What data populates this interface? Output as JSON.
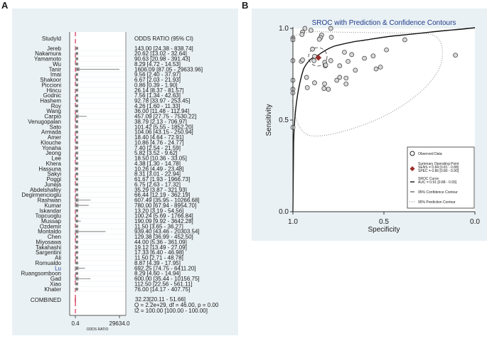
{
  "panel_labels": {
    "a": "A",
    "b": "B"
  },
  "chart_data": [
    {
      "type": "forest",
      "header_study": "StudyId",
      "header_effect": "ODDS RATIO (95% CI)",
      "xlabel": "ODDS RATIO",
      "xticks": [
        "0.4",
        "29634.0"
      ],
      "xlim": [
        0.4,
        29634.0
      ],
      "reference_line": 32.23,
      "studies": [
        [
          "Jereb",
          143.0,
          24.38,
          838.74
        ],
        [
          "Nakamura",
          20.62,
          13.02,
          32.64
        ],
        [
          "Yamamoto",
          90.63,
          20.98,
          391.43
        ],
        [
          "Wu",
          8.29,
          4.72,
          14.53
        ],
        [
          "Tanir",
          1606.09,
          87.05,
          29633.96
        ],
        [
          "Imai",
          9.56,
          2.4,
          37.97
        ],
        [
          "Shakoor",
          6.67,
          2.03,
          21.93
        ],
        [
          "Piccioni",
          0.86,
          0.39,
          1.9
        ],
        [
          "Hincu",
          26.14,
          8.37,
          81.57
        ],
        [
          "Godnic",
          7.56,
          1.34,
          42.63
        ],
        [
          "Hashem",
          92.78,
          33.97,
          253.45
        ],
        [
          "Roy",
          4.26,
          1.6,
          11.33
        ],
        [
          "Wang",
          36.0,
          11.48,
          112.94
        ],
        [
          "Carpio",
          457.09,
          27.75,
          7530.22
        ],
        [
          "Venugopalan",
          38.79,
          2.13,
          706.97
        ],
        [
          "Sato",
          101.42,
          5.55,
          1852.2
        ],
        [
          "Armada",
          104.06,
          43.15,
          250.94
        ],
        [
          "Amer",
          18.4,
          4.64,
          72.91
        ],
        [
          "Klouche",
          10.86,
          4.76,
          24.77
        ],
        [
          "Yonaha",
          7.4,
          2.54,
          21.59
        ],
        [
          "Jeong",
          5.82,
          3.52,
          9.62
        ],
        [
          "Lee",
          18.5,
          10.36,
          33.05
        ],
        [
          "Khera",
          4.38,
          1.3,
          14.78
        ],
        [
          "Hassuna",
          10.26,
          4.49,
          23.48
        ],
        [
          "Sakyi",
          8.31,
          3.01,
          22.94
        ],
        [
          "Poggi",
          61.67,
          1.93,
          1966.73
        ],
        [
          "Juneja",
          6.75,
          2.63,
          17.32
        ],
        [
          "Abdelshafey",
          35.29,
          3.87,
          321.93
        ],
        [
          "Degirmencioglu",
          66.44,
          12.19,
          362.19
        ],
        [
          "Rashwan",
          607.49,
          35.95,
          10266.68
        ],
        [
          "Kumar",
          780.0,
          67.94,
          8954.7
        ],
        [
          "Iskandar",
          13.2,
          3.19,
          54.56
        ],
        [
          "Topcuoglu",
          100.24,
          5.69,
          1766.84
        ],
        [
          "Mussap",
          190.09,
          9.92,
          3642.28
        ],
        [
          "Ozdemir",
          11.5,
          3.65,
          36.27
        ],
        [
          "Montaldo",
          939.4,
          43.46,
          20303.54
        ],
        [
          "Chen",
          129.38,
          36.99,
          452.5
        ],
        [
          "Miyosawa",
          44.0,
          5.36,
          361.09
        ],
        [
          "Takahashi",
          19.12,
          13.49,
          27.09
        ],
        [
          "Sargentini",
          17.33,
          6.4,
          46.98
        ],
        [
          "Ali",
          11.5,
          2.71,
          48.78
        ],
        [
          "Romualdo",
          8.87,
          4.39,
          17.95
        ],
        [
          "Lu",
          692.25,
          74.75,
          6411.2
        ],
        [
          "Ruangsomboon",
          8.29,
          4.6,
          14.94
        ],
        [
          "Gad",
          600.0,
          35.44,
          10156.75
        ],
        [
          "Xiao",
          112.5,
          22.56,
          561.11
        ],
        [
          "Khater",
          76.0,
          14.17,
          407.75
        ]
      ],
      "combined": {
        "label": "COMBINED",
        "estimate_text": "32.23[20.11 - 51.66]",
        "q_text": "Q = 2.2e+29, df = 46.00, p = 0.00",
        "i2_text": "I2 = 100.00 [100.00 - 100.00]"
      },
      "colors": {
        "reference": "#e0637f",
        "box": "#9a9a9a"
      }
    },
    {
      "type": "scatter",
      "title": "SROC with Prediction & Confidence Contours",
      "xlabel": "Specificity",
      "ylabel": "Sensitivity",
      "xlim": [
        1.0,
        0.0
      ],
      "ylim": [
        0.0,
        1.0
      ],
      "xticks": [
        "1.0",
        "0.5",
        "0.0"
      ],
      "yticks": [
        "0.0",
        "0.5",
        "1.0"
      ],
      "points": [
        [
          0.934,
          1.0
        ],
        [
          0.901,
          0.99
        ],
        [
          0.947,
          0.98
        ],
        [
          0.95,
          0.967
        ],
        [
          1.0,
          0.948
        ],
        [
          1.0,
          0.938
        ],
        [
          0.842,
          0.964
        ],
        [
          0.848,
          0.95
        ],
        [
          0.855,
          0.941
        ],
        [
          0.792,
          1.0
        ],
        [
          0.789,
          0.952
        ],
        [
          0.892,
          0.887
        ],
        [
          0.881,
          0.848
        ],
        [
          0.884,
          0.824
        ],
        [
          1.0,
          0.824
        ],
        [
          0.954,
          0.82
        ],
        [
          0.947,
          0.828
        ],
        [
          0.825,
          0.815
        ],
        [
          0.822,
          0.796
        ],
        [
          0.792,
          0.824
        ],
        [
          0.717,
          0.87
        ],
        [
          0.677,
          0.857
        ],
        [
          0.607,
          0.837
        ],
        [
          0.559,
          0.85
        ],
        [
          0.486,
          0.883
        ],
        [
          0.385,
          0.938
        ],
        [
          0.107,
          0.854
        ],
        [
          0.743,
          0.796
        ],
        [
          0.697,
          0.82
        ],
        [
          0.657,
          0.772
        ],
        [
          0.543,
          0.779
        ],
        [
          0.519,
          0.789
        ],
        [
          0.925,
          0.733
        ],
        [
          0.743,
          0.733
        ],
        [
          0.708,
          0.729
        ],
        [
          0.759,
          0.717
        ],
        [
          0.708,
          0.697
        ],
        [
          0.881,
          0.703
        ],
        [
          0.826,
          0.698
        ],
        [
          1.0,
          0.717
        ],
        [
          0.921,
          0.677
        ],
        [
          0.829,
          0.672
        ],
        [
          0.805,
          0.668
        ],
        [
          1.0,
          0.668
        ],
        [
          1.0,
          0.648
        ],
        [
          1.0,
          0.46
        ],
        [
          0.82,
          0.8
        ]
      ],
      "summary_point": {
        "spec": 0.86,
        "sens": 0.84
      },
      "legend": {
        "placement": "bottom-right",
        "observed": "Observed Data",
        "summary_title": "Summary Operating Point",
        "summary_sens": "SENS = 0.84 [0.81 - 0.88]",
        "summary_spec": "SPEC = 0.86 [0.80 - 0.90]",
        "sroc_title": "SROC Curve",
        "sroc_auc": "AUC = 0.91 [0.88 - 0.93]",
        "confidence": "95% Confidence Contour",
        "prediction": "95% Prediction Contour"
      },
      "colors": {
        "title": "#1f3b8c",
        "summary": "#9b2a2a"
      }
    }
  ]
}
